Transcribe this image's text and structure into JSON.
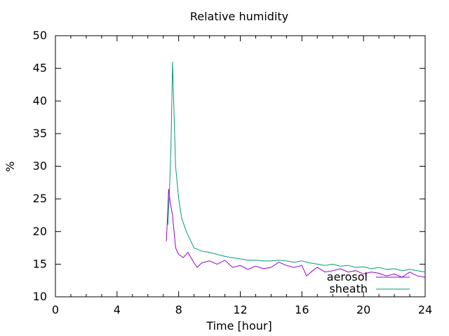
{
  "chart_data": {
    "type": "line",
    "title": "Relative humidity",
    "xlabel": "Time [hour]",
    "ylabel": "%",
    "xlim": [
      0,
      24
    ],
    "ylim": [
      10,
      50
    ],
    "x_ticks": [
      "0",
      "4",
      "8",
      "12",
      "16",
      "20",
      "24"
    ],
    "y_ticks": [
      "10",
      "15",
      "20",
      "25",
      "30",
      "35",
      "40",
      "45",
      "50"
    ],
    "grid": false,
    "legend_position": "bottom-right",
    "series": [
      {
        "name": "aerosol",
        "color": "#9400d3",
        "x": [
          7.2,
          7.25,
          7.35,
          7.45,
          7.6,
          7.8,
          8.0,
          8.3,
          8.6,
          9.0,
          9.2,
          9.5,
          10.0,
          10.5,
          11.0,
          11.5,
          12.0,
          12.5,
          13.0,
          13.5,
          14.0,
          14.5,
          15.0,
          15.5,
          16.0,
          16.3,
          16.7,
          17.0,
          17.5,
          18.0,
          18.5,
          19.0,
          19.5,
          20.0,
          20.5,
          21.0,
          21.5,
          22.0,
          22.5,
          23.0,
          23.5,
          24.0
        ],
        "y": [
          18.5,
          21.0,
          26.5,
          24.5,
          22.5,
          17.5,
          16.5,
          16.0,
          16.8,
          15.2,
          14.5,
          15.2,
          15.5,
          15.0,
          15.6,
          14.5,
          14.8,
          14.2,
          14.7,
          14.3,
          14.5,
          15.3,
          14.8,
          14.5,
          14.8,
          13.2,
          14.0,
          14.5,
          13.8,
          14.0,
          14.3,
          13.8,
          14.0,
          13.5,
          13.8,
          13.6,
          13.2,
          13.5,
          13.0,
          13.8,
          13.2,
          13.0
        ]
      },
      {
        "name": "sheath",
        "color": "#009e73",
        "x": [
          7.3,
          7.4,
          7.5,
          7.6,
          7.7,
          7.8,
          8.0,
          8.2,
          8.5,
          8.8,
          9.0,
          9.3,
          9.5,
          10.0,
          10.5,
          11.0,
          11.5,
          12.0,
          12.5,
          13.0,
          13.5,
          14.0,
          14.5,
          15.0,
          15.5,
          16.0,
          16.5,
          17.0,
          17.5,
          18.0,
          18.5,
          19.0,
          19.5,
          20.0,
          20.5,
          21.0,
          21.5,
          22.0,
          22.5,
          23.0,
          23.5,
          24.0
        ],
        "y": [
          21.0,
          26.0,
          33.0,
          46.0,
          38.0,
          30.0,
          25.0,
          22.0,
          20.0,
          18.5,
          17.5,
          17.2,
          17.0,
          16.8,
          16.5,
          16.2,
          16.0,
          15.8,
          15.6,
          15.6,
          15.5,
          15.5,
          15.6,
          15.5,
          15.3,
          15.5,
          15.2,
          15.0,
          14.8,
          15.0,
          14.7,
          14.8,
          14.5,
          14.6,
          14.3,
          14.5,
          14.2,
          14.3,
          14.0,
          14.2,
          14.0,
          13.8
        ]
      }
    ]
  }
}
